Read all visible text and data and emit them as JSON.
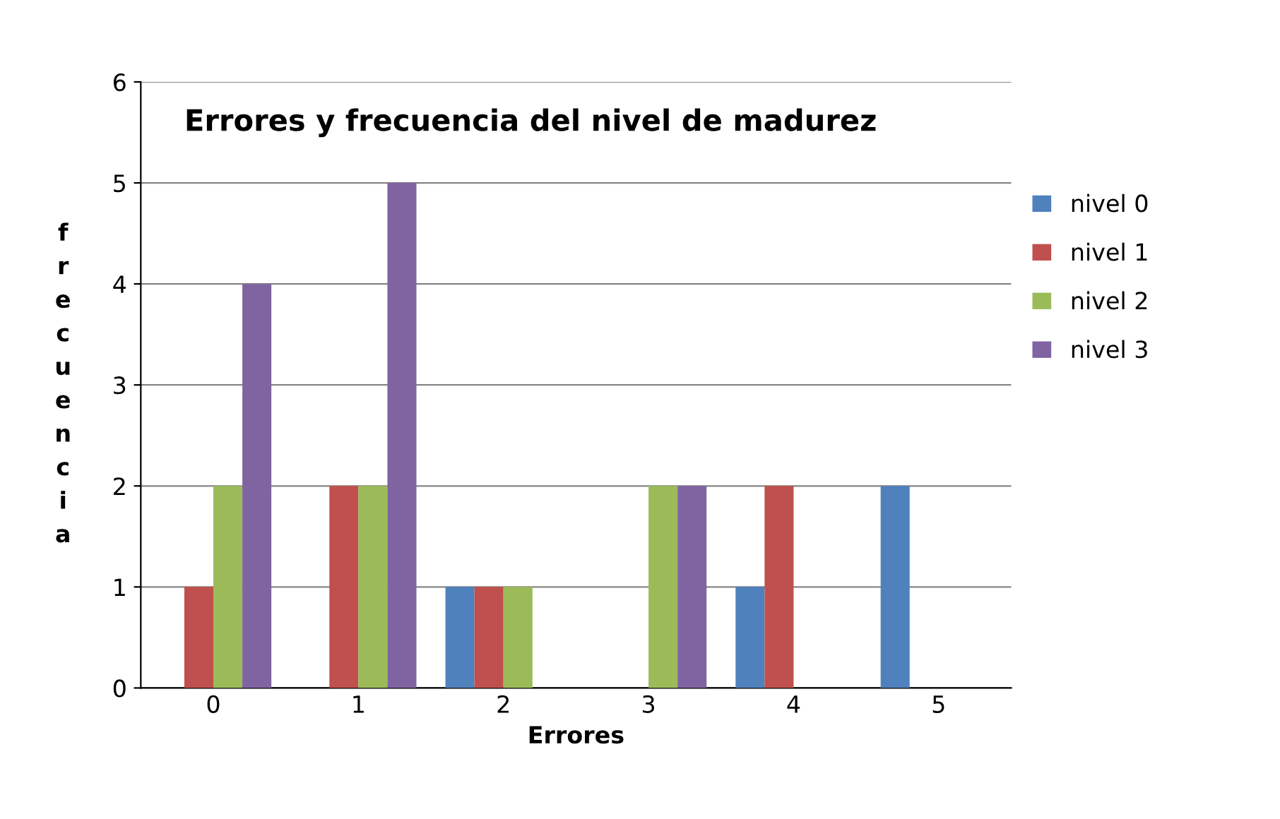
{
  "chart_data": {
    "type": "bar",
    "title": "Errores y frecuencia del nivel de madurez",
    "xlabel": "Errores",
    "ylabel": "frecuencia",
    "categories": [
      "0",
      "1",
      "2",
      "3",
      "4",
      "5"
    ],
    "series": [
      {
        "name": "nivel 0",
        "color": "#4f81bd",
        "values": [
          0,
          0,
          1,
          0,
          1,
          2
        ]
      },
      {
        "name": "nivel 1",
        "color": "#c0504d",
        "values": [
          1,
          2,
          1,
          0,
          2,
          0
        ]
      },
      {
        "name": "nivel 2",
        "color": "#9bbb59",
        "values": [
          2,
          2,
          1,
          2,
          0,
          0
        ]
      },
      {
        "name": "nivel 3",
        "color": "#8064a2",
        "values": [
          4,
          5,
          0,
          2,
          0,
          0
        ]
      }
    ],
    "ylim": [
      0,
      6
    ],
    "yticks": [
      0,
      1,
      2,
      3,
      4,
      5,
      6
    ],
    "grid": "y",
    "legend": "right"
  }
}
